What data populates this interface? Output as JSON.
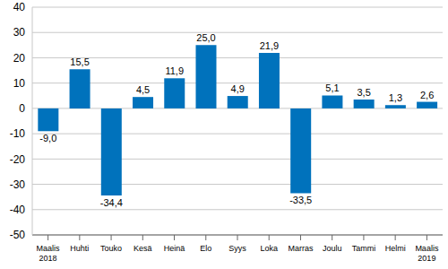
{
  "chart_data": {
    "type": "bar",
    "categories": [
      "Maalis 2018",
      "Huhti",
      "Touko",
      "Kesä",
      "Heinä",
      "Elo",
      "Syys",
      "Loka",
      "Marras",
      "Joulu",
      "Tammi",
      "Helmi",
      "Maalis 2019"
    ],
    "values": [
      -9.0,
      15.5,
      -34.4,
      4.5,
      11.9,
      25.0,
      4.9,
      21.9,
      -33.5,
      5.1,
      3.5,
      1.3,
      2.6
    ],
    "value_labels": [
      "-9,0",
      "15,5",
      "-34,4",
      "4,5",
      "11,9",
      "25,0",
      "4,9",
      "21,9",
      "-33,5",
      "5,1",
      "3,5",
      "1,3",
      "2,6"
    ],
    "color": "#0072bc",
    "ylim": [
      -50,
      40
    ],
    "yticks": [
      -50,
      -40,
      -30,
      -20,
      -10,
      0,
      10,
      20,
      30,
      40
    ],
    "grid": true,
    "data_labels": true
  }
}
